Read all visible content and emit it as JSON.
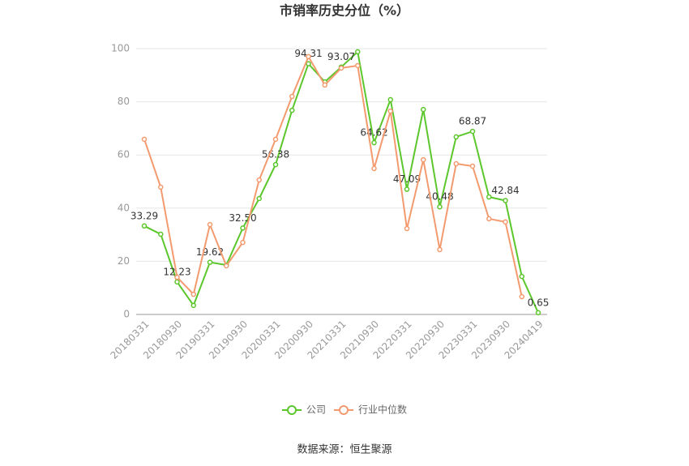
{
  "chart_data": {
    "type": "line",
    "title": "市销率历史分位（%）",
    "source": "数据来源：恒生聚源",
    "categories": [
      "20180331",
      null,
      "20180930",
      null,
      "20190331",
      null,
      "20190930",
      null,
      "20200331",
      null,
      "20200930",
      null,
      "20210331",
      null,
      "20210930",
      null,
      "20220331",
      null,
      "20220930",
      null,
      "20230331",
      null,
      "20230930",
      null,
      "20240419"
    ],
    "series": [
      {
        "name": "公司",
        "color": "#5cc72c",
        "values": [
          33.29,
          30.2,
          12.23,
          3.4,
          19.62,
          18.6,
          32.5,
          43.6,
          56.38,
          76.8,
          94.31,
          87.5,
          93.07,
          98.8,
          64.62,
          80.8,
          47.09,
          77.1,
          40.48,
          66.8,
          68.87,
          44.2,
          42.84,
          14.3,
          0.65
        ],
        "value_labels": [
          "33.29",
          null,
          "12.23",
          null,
          "19.62",
          null,
          "32.50",
          null,
          "56.38",
          null,
          "94.31",
          null,
          "93.07",
          null,
          "64.62",
          null,
          "47.09",
          null,
          "40.48",
          null,
          "68.87",
          null,
          "42.84",
          null,
          "0.65"
        ]
      },
      {
        "name": "行业中位数",
        "color": "#f39a6f",
        "values": [
          65.9,
          47.9,
          14.0,
          7.6,
          33.8,
          18.3,
          27.1,
          50.6,
          65.9,
          82.0,
          97.0,
          86.3,
          92.7,
          93.6,
          54.9,
          76.5,
          32.3,
          58.2,
          24.4,
          56.7,
          55.8,
          36.0,
          34.8,
          6.7,
          null
        ]
      }
    ],
    "ylim": [
      0,
      100
    ],
    "yticks": [
      0,
      20,
      40,
      60,
      80,
      100
    ],
    "grid": true
  }
}
